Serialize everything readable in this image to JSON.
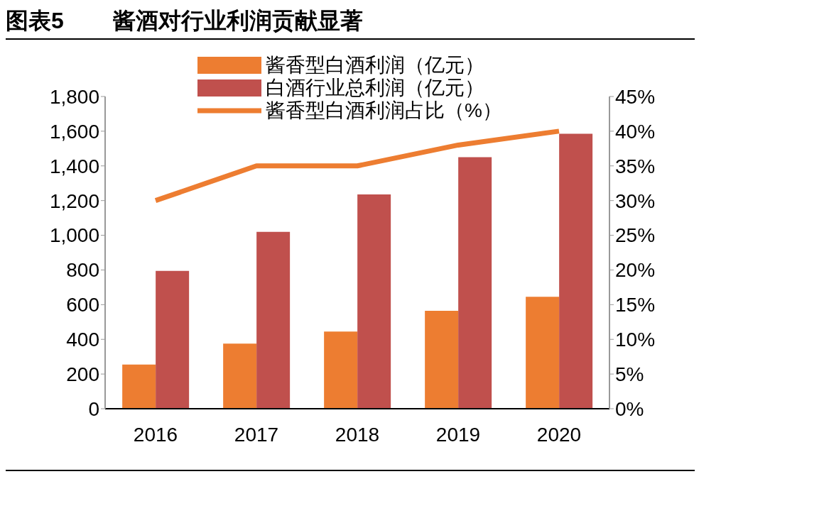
{
  "chart_data": {
    "type": "bar",
    "title": "图表5 酱酒对行业利润贡献显著",
    "categories": [
      "2016",
      "2017",
      "2018",
      "2019",
      "2020"
    ],
    "series": [
      {
        "name": "酱香型白酒利润（亿元）",
        "color": "#ed7d31",
        "values": [
          255,
          375,
          445,
          565,
          645
        ]
      },
      {
        "name": "白酒行业总利润（亿元）",
        "color": "#c0504d",
        "values": [
          795,
          1020,
          1235,
          1450,
          1585
        ]
      },
      {
        "name": "酱香型白酒利润占比（%）",
        "type": "line",
        "axis": "y2",
        "color": "#ed7d31",
        "values": [
          30,
          35,
          35,
          38,
          40
        ]
      }
    ],
    "ylim": [
      0,
      1800
    ],
    "yticks": [
      0,
      200,
      400,
      600,
      800,
      {
        "value": 1000,
        "label": "1,000"
      },
      {
        "value": 1200,
        "label": "1,200"
      },
      {
        "value": 1400,
        "label": "1,400"
      },
      {
        "value": 1600,
        "label": "1,600"
      },
      {
        "value": 1800,
        "label": "1,800"
      }
    ],
    "y2lim": [
      0,
      45
    ],
    "y2ticks": [
      {
        "value": 0,
        "label": "0%"
      },
      {
        "value": 5,
        "label": "5%"
      },
      {
        "value": 10,
        "label": "10%"
      },
      {
        "value": 15,
        "label": "15%"
      },
      {
        "value": 20,
        "label": "20%"
      },
      {
        "value": 25,
        "label": "25%"
      },
      {
        "value": 30,
        "label": "30%"
      },
      {
        "value": 35,
        "label": "35%"
      },
      {
        "value": 40,
        "label": "40%"
      },
      {
        "value": 45,
        "label": "45%"
      }
    ],
    "grid": false,
    "legend": "top",
    "marker": "none",
    "line_style": "solid"
  }
}
